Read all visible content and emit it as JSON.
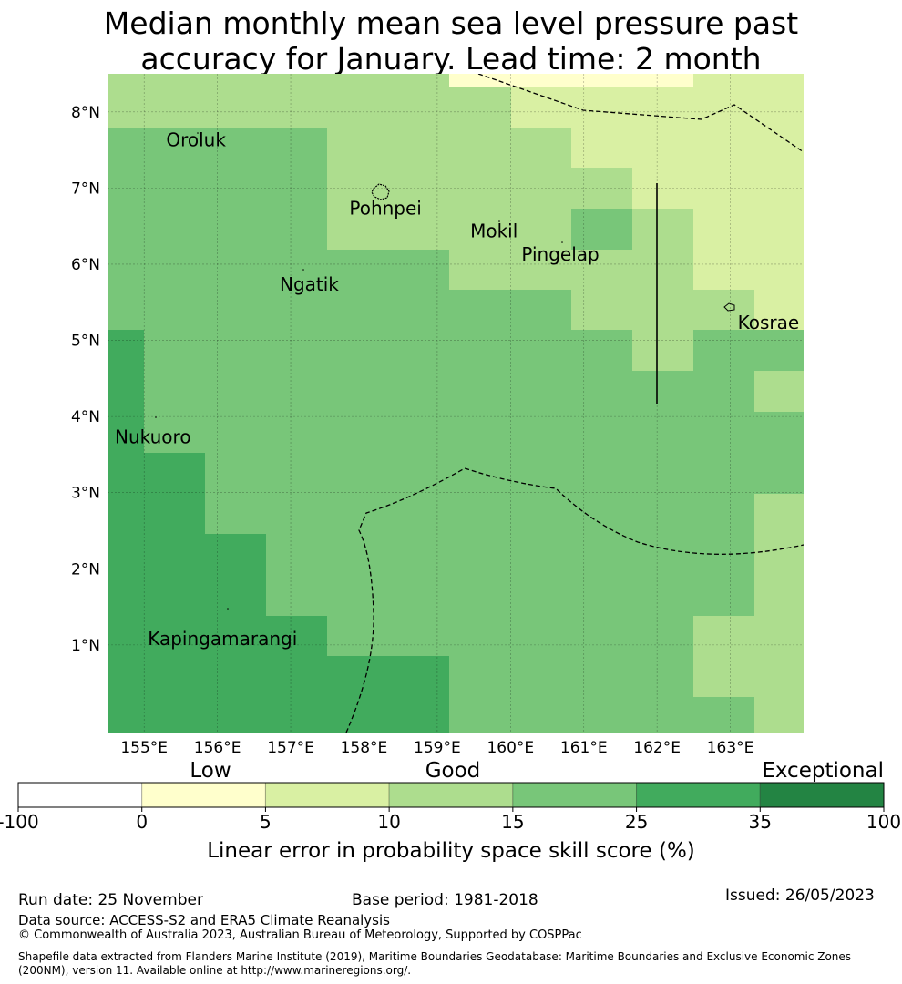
{
  "title_line1": "Median monthly mean sea level pressure past",
  "title_line2": "accuracy for January. Lead time: 2 month",
  "map": {
    "lon_range": [
      154.5,
      164.0
    ],
    "lat_range": [
      -0.15,
      8.5
    ],
    "lon_ticks": [
      {
        "value": 155,
        "label": "155°E"
      },
      {
        "value": 156,
        "label": "156°E"
      },
      {
        "value": 157,
        "label": "157°E"
      },
      {
        "value": 158,
        "label": "158°E"
      },
      {
        "value": 159,
        "label": "159°E"
      },
      {
        "value": 160,
        "label": "160°E"
      },
      {
        "value": 161,
        "label": "161°E"
      },
      {
        "value": 162,
        "label": "162°E"
      },
      {
        "value": 163,
        "label": "163°E"
      }
    ],
    "lat_ticks": [
      {
        "value": 1,
        "label": "1°N"
      },
      {
        "value": 2,
        "label": "2°N"
      },
      {
        "value": 3,
        "label": "3°N"
      },
      {
        "value": 4,
        "label": "4°N"
      },
      {
        "value": 5,
        "label": "5°N"
      },
      {
        "value": 6,
        "label": "6°N"
      },
      {
        "value": 7,
        "label": "7°N"
      },
      {
        "value": 8,
        "label": "8°N"
      }
    ],
    "places": [
      {
        "name": "Oroluk",
        "lon": 155.3,
        "lat": 7.55
      },
      {
        "name": "Pohnpei",
        "lon": 157.8,
        "lat": 6.65
      },
      {
        "name": "Mokil",
        "lon": 159.45,
        "lat": 6.35
      },
      {
        "name": "Pingelap",
        "lon": 160.15,
        "lat": 6.05
      },
      {
        "name": "Ngatik",
        "lon": 156.85,
        "lat": 5.65
      },
      {
        "name": "Kosrae",
        "lon": 163.1,
        "lat": 5.15
      },
      {
        "name": "Nukuoro",
        "lon": 154.6,
        "lat": 3.65
      },
      {
        "name": "Kapingamarangi",
        "lon": 155.05,
        "lat": 1.0
      }
    ],
    "category_colors": [
      "#ffffff",
      "#ffffcc",
      "#d9f0a3",
      "#addd8e",
      "#78c679",
      "#41ab5d",
      "#238443"
    ]
  },
  "colorbar": {
    "ticks": [
      "-100",
      "0",
      "5",
      "10",
      "15",
      "25",
      "35",
      "100"
    ],
    "categories": [
      "Low",
      "Good",
      "Exceptional"
    ],
    "label": "Linear error in probability space skill score (%)"
  },
  "footer": {
    "run_date": "Run date: 25 November",
    "base_period": "Base period: 1981-2018",
    "issued": "Issued: 26/05/2023",
    "data_source": "Data source: ACCESS-S2 and ERA5 Climate Reanalysis",
    "copyright": "© Commonwealth of Australia 2023, Australian Bureau of Meteorology, Supported by COSPPac",
    "shapefile": "Shapefile data extracted from Flanders Marine Institute (2019), Maritime Boundaries Geodatabase: Maritime Boundaries and Exclusive Economic Zones (200NM), version 11. Available online at http://www.marineregions.org/."
  }
}
